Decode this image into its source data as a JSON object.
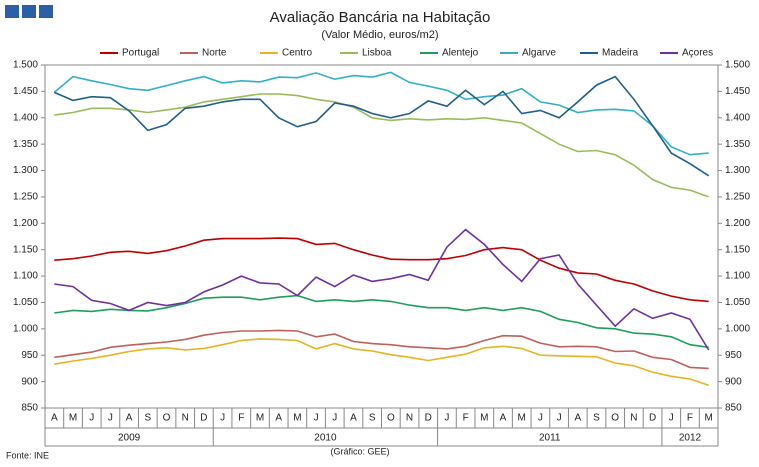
{
  "chart_data": {
    "type": "line",
    "title": "Avaliação Bancária na Habitação",
    "subtitle": "(Valor Médio, euros/m2)",
    "source": "Fonte: INE",
    "credit": "(Gráfico: GEE)",
    "categories": [
      "A",
      "M",
      "J",
      "J",
      "A",
      "S",
      "O",
      "N",
      "D",
      "J",
      "F",
      "M",
      "A",
      "M",
      "J",
      "J",
      "A",
      "S",
      "O",
      "N",
      "D",
      "J",
      "F",
      "M",
      "A",
      "M",
      "J",
      "J",
      "A",
      "S",
      "O",
      "N",
      "D",
      "J",
      "F",
      "M"
    ],
    "years": [
      "2009",
      "2010",
      "2011",
      "2012"
    ],
    "ylim": [
      850,
      1500
    ],
    "yticks": [
      850,
      900,
      950,
      {
        "value": 1000,
        "label": "1.000"
      },
      {
        "value": 1050,
        "label": "1.050"
      },
      {
        "value": 1100,
        "label": "1.100"
      },
      {
        "value": 1150,
        "label": "1.150"
      },
      {
        "value": 1200,
        "label": "1.200"
      },
      {
        "value": 1250,
        "label": "1.250"
      },
      {
        "value": 1300,
        "label": "1.300"
      },
      {
        "value": 1350,
        "label": "1.350"
      },
      {
        "value": 1400,
        "label": "1.400"
      },
      {
        "value": 1450,
        "label": "1.450"
      },
      {
        "value": 1500,
        "label": "1.500"
      }
    ],
    "y2lim": [
      850,
      1500
    ],
    "y2ticks": [
      850,
      900,
      950,
      {
        "value": 1000,
        "label": "1.000"
      },
      {
        "value": 1050,
        "label": "1.050"
      },
      {
        "value": 1100,
        "label": "1.100"
      },
      {
        "value": 1150,
        "label": "1.150"
      },
      {
        "value": 1200,
        "label": "1.200"
      },
      {
        "value": 1250,
        "label": "1.250"
      },
      {
        "value": 1300,
        "label": "1.300"
      },
      {
        "value": 1350,
        "label": "1.350"
      },
      {
        "value": 1400,
        "label": "1.400"
      },
      {
        "value": 1450,
        "label": "1.450"
      },
      {
        "value": 1500,
        "label": "1.500"
      }
    ],
    "grid": false,
    "legend": "top",
    "series": [
      {
        "name": "Portugal",
        "color": "#c00000",
        "values": [
          1130,
          1133,
          1138,
          1145,
          1147,
          1143,
          1148,
          1157,
          1168,
          1171,
          1171,
          1171,
          1172,
          1171,
          1160,
          1162,
          1150,
          1140,
          1132,
          1131,
          1131,
          1133,
          1139,
          1150,
          1154,
          1150,
          1130,
          1115,
          1106,
          1104,
          1092,
          1085,
          1072,
          1062,
          1055,
          1052
        ]
      },
      {
        "name": "Norte",
        "color": "#c0605c",
        "values": [
          946,
          951,
          956,
          965,
          969,
          972,
          975,
          980,
          988,
          993,
          996,
          996,
          997,
          996,
          985,
          990,
          976,
          972,
          970,
          966,
          964,
          962,
          967,
          978,
          987,
          986,
          973,
          966,
          967,
          966,
          957,
          958,
          946,
          942,
          927,
          925
        ]
      },
      {
        "name": "Centro",
        "color": "#e6b422",
        "values": [
          933,
          939,
          944,
          950,
          957,
          962,
          964,
          960,
          963,
          970,
          978,
          981,
          980,
          978,
          962,
          972,
          962,
          958,
          951,
          946,
          940,
          946,
          952,
          964,
          967,
          963,
          950,
          949,
          948,
          947,
          935,
          930,
          918,
          910,
          905,
          893
        ]
      },
      {
        "name": "Lisboa",
        "color": "#9bbb59",
        "values": [
          1405,
          1410,
          1418,
          1418,
          1415,
          1410,
          1415,
          1420,
          1430,
          1435,
          1440,
          1445,
          1445,
          1442,
          1435,
          1430,
          1420,
          1400,
          1395,
          1398,
          1396,
          1398,
          1397,
          1400,
          1395,
          1390,
          1370,
          1350,
          1336,
          1338,
          1330,
          1310,
          1283,
          1268,
          1263,
          1250
        ]
      },
      {
        "name": "Alentejo",
        "color": "#1f9e5a",
        "values": [
          1030,
          1035,
          1033,
          1037,
          1035,
          1034,
          1040,
          1048,
          1058,
          1060,
          1060,
          1055,
          1060,
          1063,
          1052,
          1055,
          1052,
          1055,
          1052,
          1045,
          1040,
          1040,
          1035,
          1040,
          1035,
          1040,
          1033,
          1018,
          1012,
          1002,
          1000,
          992,
          990,
          985,
          970,
          965
        ]
      },
      {
        "name": "Algarve",
        "color": "#31b0c8",
        "values": [
          1448,
          1478,
          1470,
          1463,
          1455,
          1452,
          1461,
          1470,
          1478,
          1466,
          1470,
          1468,
          1477,
          1476,
          1485,
          1473,
          1480,
          1477,
          1486,
          1467,
          1460,
          1452,
          1435,
          1440,
          1443,
          1455,
          1430,
          1424,
          1410,
          1415,
          1416,
          1413,
          1385,
          1345,
          1330,
          1333
        ]
      },
      {
        "name": "Madeira",
        "color": "#1f5f8b",
        "values": [
          1448,
          1433,
          1440,
          1438,
          1413,
          1376,
          1387,
          1418,
          1422,
          1430,
          1435,
          1435,
          1400,
          1383,
          1393,
          1428,
          1422,
          1408,
          1400,
          1408,
          1432,
          1422,
          1452,
          1425,
          1450,
          1408,
          1414,
          1400,
          1430,
          1462,
          1478,
          1435,
          1385,
          1333,
          1313,
          1290
        ]
      },
      {
        "name": "Açores",
        "color": "#7030a0",
        "values": [
          1085,
          1080,
          1054,
          1048,
          1035,
          1050,
          1044,
          1050,
          1070,
          1083,
          1100,
          1087,
          1085,
          1063,
          1098,
          1080,
          1102,
          1090,
          1095,
          1103,
          1092,
          1155,
          1188,
          1160,
          1122,
          1090,
          1133,
          1140,
          1085,
          1045,
          1005,
          1038,
          1020,
          1030,
          1018,
          960
        ]
      }
    ]
  }
}
